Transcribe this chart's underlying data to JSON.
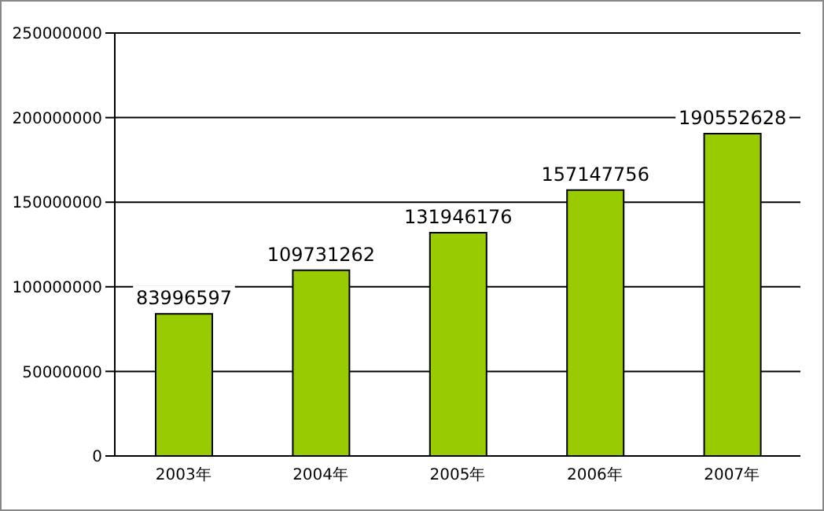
{
  "chart_data": {
    "type": "bar",
    "categories": [
      "2003年",
      "2004年",
      "2005年",
      "2006年",
      "2007年"
    ],
    "values": [
      83996597,
      109731262,
      131946176,
      157147756,
      190552628
    ],
    "color": "#99cc00",
    "ylim": [
      0,
      250000000
    ],
    "yticks": [
      0,
      50000000,
      100000000,
      150000000,
      200000000,
      250000000
    ],
    "grid": "y",
    "data_labels": true
  }
}
